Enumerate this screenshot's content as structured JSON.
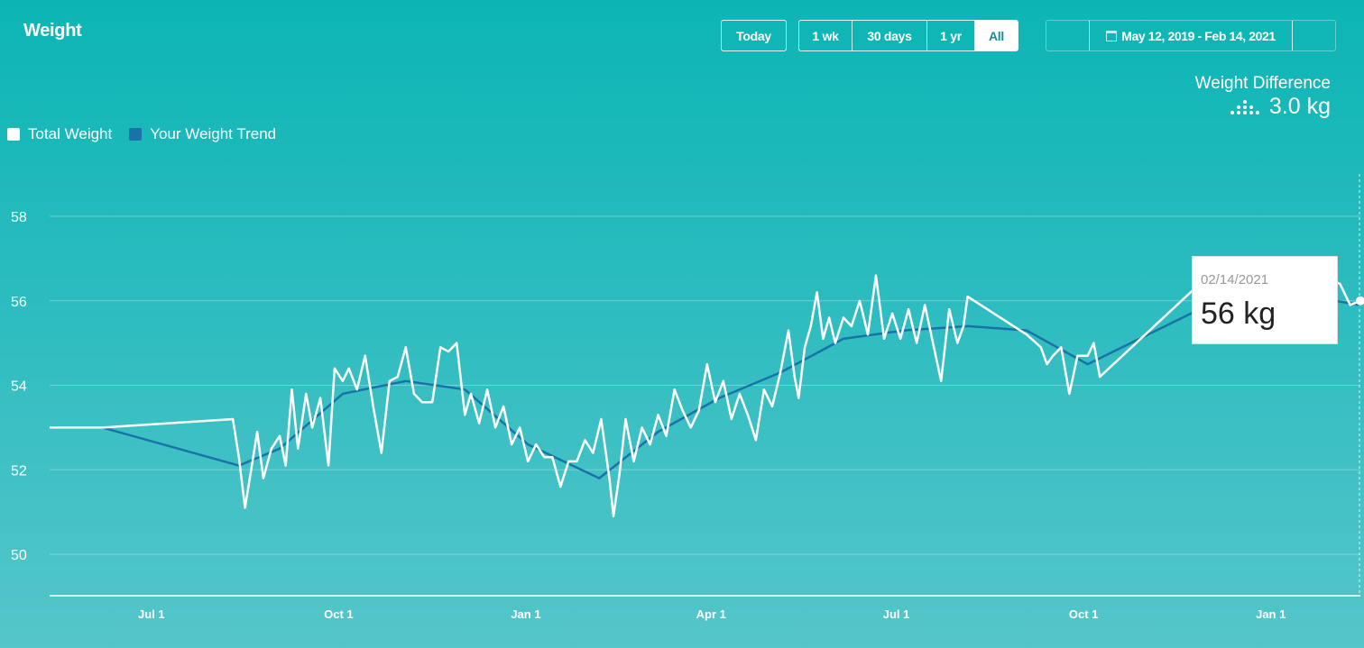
{
  "header": {
    "title": "Weight"
  },
  "controls": {
    "today": "Today",
    "ranges": [
      {
        "label": "1 wk",
        "active": false
      },
      {
        "label": "30 days",
        "active": false
      },
      {
        "label": "1 yr",
        "active": false
      },
      {
        "label": "All",
        "active": true
      }
    ],
    "date_range": "May 12, 2019 - Feb 14, 2021",
    "calendar_icon": "calendar-icon"
  },
  "summary": {
    "label": "Weight Difference",
    "value": "3.0 kg",
    "icon": "bars-dots-icon"
  },
  "legend": [
    {
      "label": "Total Weight",
      "color": "#ffffff"
    },
    {
      "label": "Your Weight Trend",
      "color": "#1a73a8"
    }
  ],
  "tooltip": {
    "date": "02/14/2021",
    "value": "56 kg"
  },
  "colors": {
    "accent": "#0cb5b5",
    "trend": "#1a73a8",
    "weight": "#ffffff"
  },
  "chart_data": {
    "type": "line",
    "x_axis": {
      "type": "date",
      "range": [
        "2019-05-12",
        "2021-02-14"
      ],
      "ticks": [
        "Jul 1",
        "Oct 1",
        "Jan 1",
        "Apr 1",
        "Jul 1",
        "Oct 1",
        "Jan 1"
      ]
    },
    "y_axis": {
      "range": [
        49,
        59
      ],
      "ticks": [
        50,
        52,
        54,
        56,
        58
      ],
      "grid": true
    },
    "legend_position": "top-left",
    "series": [
      {
        "name": "Total Weight",
        "points": [
          [
            "2019-05-12",
            53.0
          ],
          [
            "2019-06-07",
            53.0
          ],
          [
            "2019-08-10",
            53.2
          ],
          [
            "2019-08-13",
            52.3
          ],
          [
            "2019-08-16",
            51.1
          ],
          [
            "2019-08-19",
            52.0
          ],
          [
            "2019-08-22",
            52.9
          ],
          [
            "2019-08-25",
            51.8
          ],
          [
            "2019-08-29",
            52.5
          ],
          [
            "2019-09-02",
            52.8
          ],
          [
            "2019-09-05",
            52.1
          ],
          [
            "2019-09-08",
            53.9
          ],
          [
            "2019-09-11",
            52.5
          ],
          [
            "2019-09-15",
            53.8
          ],
          [
            "2019-09-18",
            53.0
          ],
          [
            "2019-09-22",
            53.7
          ],
          [
            "2019-09-26",
            52.1
          ],
          [
            "2019-09-29",
            54.4
          ],
          [
            "2019-10-03",
            54.1
          ],
          [
            "2019-10-06",
            54.4
          ],
          [
            "2019-10-10",
            53.9
          ],
          [
            "2019-10-14",
            54.7
          ],
          [
            "2019-10-18",
            53.5
          ],
          [
            "2019-10-22",
            52.4
          ],
          [
            "2019-10-26",
            54.1
          ],
          [
            "2019-10-30",
            54.2
          ],
          [
            "2019-11-03",
            54.9
          ],
          [
            "2019-11-07",
            53.8
          ],
          [
            "2019-11-11",
            53.6
          ],
          [
            "2019-11-16",
            53.6
          ],
          [
            "2019-11-20",
            54.9
          ],
          [
            "2019-11-24",
            54.8
          ],
          [
            "2019-11-28",
            55.0
          ],
          [
            "2019-12-02",
            53.3
          ],
          [
            "2019-12-05",
            53.8
          ],
          [
            "2019-12-09",
            53.1
          ],
          [
            "2019-12-13",
            53.9
          ],
          [
            "2019-12-17",
            53.0
          ],
          [
            "2019-12-21",
            53.5
          ],
          [
            "2019-12-25",
            52.6
          ],
          [
            "2019-12-29",
            53.0
          ],
          [
            "2020-01-02",
            52.2
          ],
          [
            "2020-01-06",
            52.6
          ],
          [
            "2020-01-10",
            52.3
          ],
          [
            "2020-01-14",
            52.3
          ],
          [
            "2020-01-18",
            51.6
          ],
          [
            "2020-01-22",
            52.2
          ],
          [
            "2020-01-26",
            52.2
          ],
          [
            "2020-01-30",
            52.7
          ],
          [
            "2020-02-03",
            52.4
          ],
          [
            "2020-02-07",
            53.2
          ],
          [
            "2020-02-11",
            51.8
          ],
          [
            "2020-02-13",
            50.9
          ],
          [
            "2020-02-16",
            51.9
          ],
          [
            "2020-02-19",
            53.2
          ],
          [
            "2020-02-23",
            52.2
          ],
          [
            "2020-02-27",
            53.0
          ],
          [
            "2020-03-02",
            52.6
          ],
          [
            "2020-03-06",
            53.3
          ],
          [
            "2020-03-10",
            52.8
          ],
          [
            "2020-03-14",
            53.9
          ],
          [
            "2020-03-18",
            53.4
          ],
          [
            "2020-03-22",
            53.0
          ],
          [
            "2020-03-26",
            53.4
          ],
          [
            "2020-03-30",
            54.5
          ],
          [
            "2020-04-03",
            53.6
          ],
          [
            "2020-04-07",
            54.1
          ],
          [
            "2020-04-11",
            53.2
          ],
          [
            "2020-04-15",
            53.8
          ],
          [
            "2020-04-19",
            53.3
          ],
          [
            "2020-04-23",
            52.7
          ],
          [
            "2020-04-27",
            53.9
          ],
          [
            "2020-05-01",
            53.5
          ],
          [
            "2020-05-05",
            54.3
          ],
          [
            "2020-05-09",
            55.3
          ],
          [
            "2020-05-12",
            54.2
          ],
          [
            "2020-05-14",
            53.7
          ],
          [
            "2020-05-17",
            54.9
          ],
          [
            "2020-05-20",
            55.4
          ],
          [
            "2020-05-23",
            56.2
          ],
          [
            "2020-05-26",
            55.1
          ],
          [
            "2020-05-29",
            55.6
          ],
          [
            "2020-06-01",
            55.0
          ],
          [
            "2020-06-05",
            55.6
          ],
          [
            "2020-06-09",
            55.4
          ],
          [
            "2020-06-13",
            56.0
          ],
          [
            "2020-06-17",
            55.2
          ],
          [
            "2020-06-21",
            56.6
          ],
          [
            "2020-06-25",
            55.1
          ],
          [
            "2020-06-29",
            55.7
          ],
          [
            "2020-07-03",
            55.1
          ],
          [
            "2020-07-07",
            55.8
          ],
          [
            "2020-07-11",
            55.0
          ],
          [
            "2020-07-15",
            55.9
          ],
          [
            "2020-07-19",
            55.0
          ],
          [
            "2020-07-23",
            54.1
          ],
          [
            "2020-07-27",
            55.8
          ],
          [
            "2020-07-31",
            55.0
          ],
          [
            "2020-08-03",
            55.4
          ],
          [
            "2020-08-05",
            56.1
          ],
          [
            "2020-09-03",
            55.2
          ],
          [
            "2020-09-10",
            54.9
          ],
          [
            "2020-09-13",
            54.5
          ],
          [
            "2020-09-16",
            54.7
          ],
          [
            "2020-09-20",
            54.9
          ],
          [
            "2020-09-24",
            53.8
          ],
          [
            "2020-09-28",
            54.7
          ],
          [
            "2020-10-03",
            54.7
          ],
          [
            "2020-10-06",
            55.0
          ],
          [
            "2020-10-09",
            54.2
          ],
          [
            "2020-11-27",
            56.4
          ],
          [
            "2021-01-20",
            56.7
          ],
          [
            "2021-02-04",
            56.4
          ],
          [
            "2021-02-09",
            55.9
          ],
          [
            "2021-02-14",
            56.0
          ]
        ]
      },
      {
        "name": "Your Weight Trend",
        "points": [
          [
            "2019-05-12",
            53.0
          ],
          [
            "2019-06-07",
            53.0
          ],
          [
            "2019-08-13",
            52.1
          ],
          [
            "2019-09-02",
            52.5
          ],
          [
            "2019-10-03",
            53.8
          ],
          [
            "2019-11-03",
            54.1
          ],
          [
            "2019-12-02",
            53.9
          ],
          [
            "2020-01-02",
            52.6
          ],
          [
            "2020-02-06",
            51.8
          ],
          [
            "2020-03-06",
            52.9
          ],
          [
            "2020-04-05",
            53.7
          ],
          [
            "2020-05-05",
            54.3
          ],
          [
            "2020-06-05",
            55.1
          ],
          [
            "2020-07-05",
            55.3
          ],
          [
            "2020-08-05",
            55.4
          ],
          [
            "2020-09-03",
            55.3
          ],
          [
            "2020-10-03",
            54.5
          ],
          [
            "2020-11-27",
            55.8
          ],
          [
            "2021-01-20",
            56.1
          ],
          [
            "2021-02-14",
            55.9
          ]
        ]
      }
    ]
  }
}
